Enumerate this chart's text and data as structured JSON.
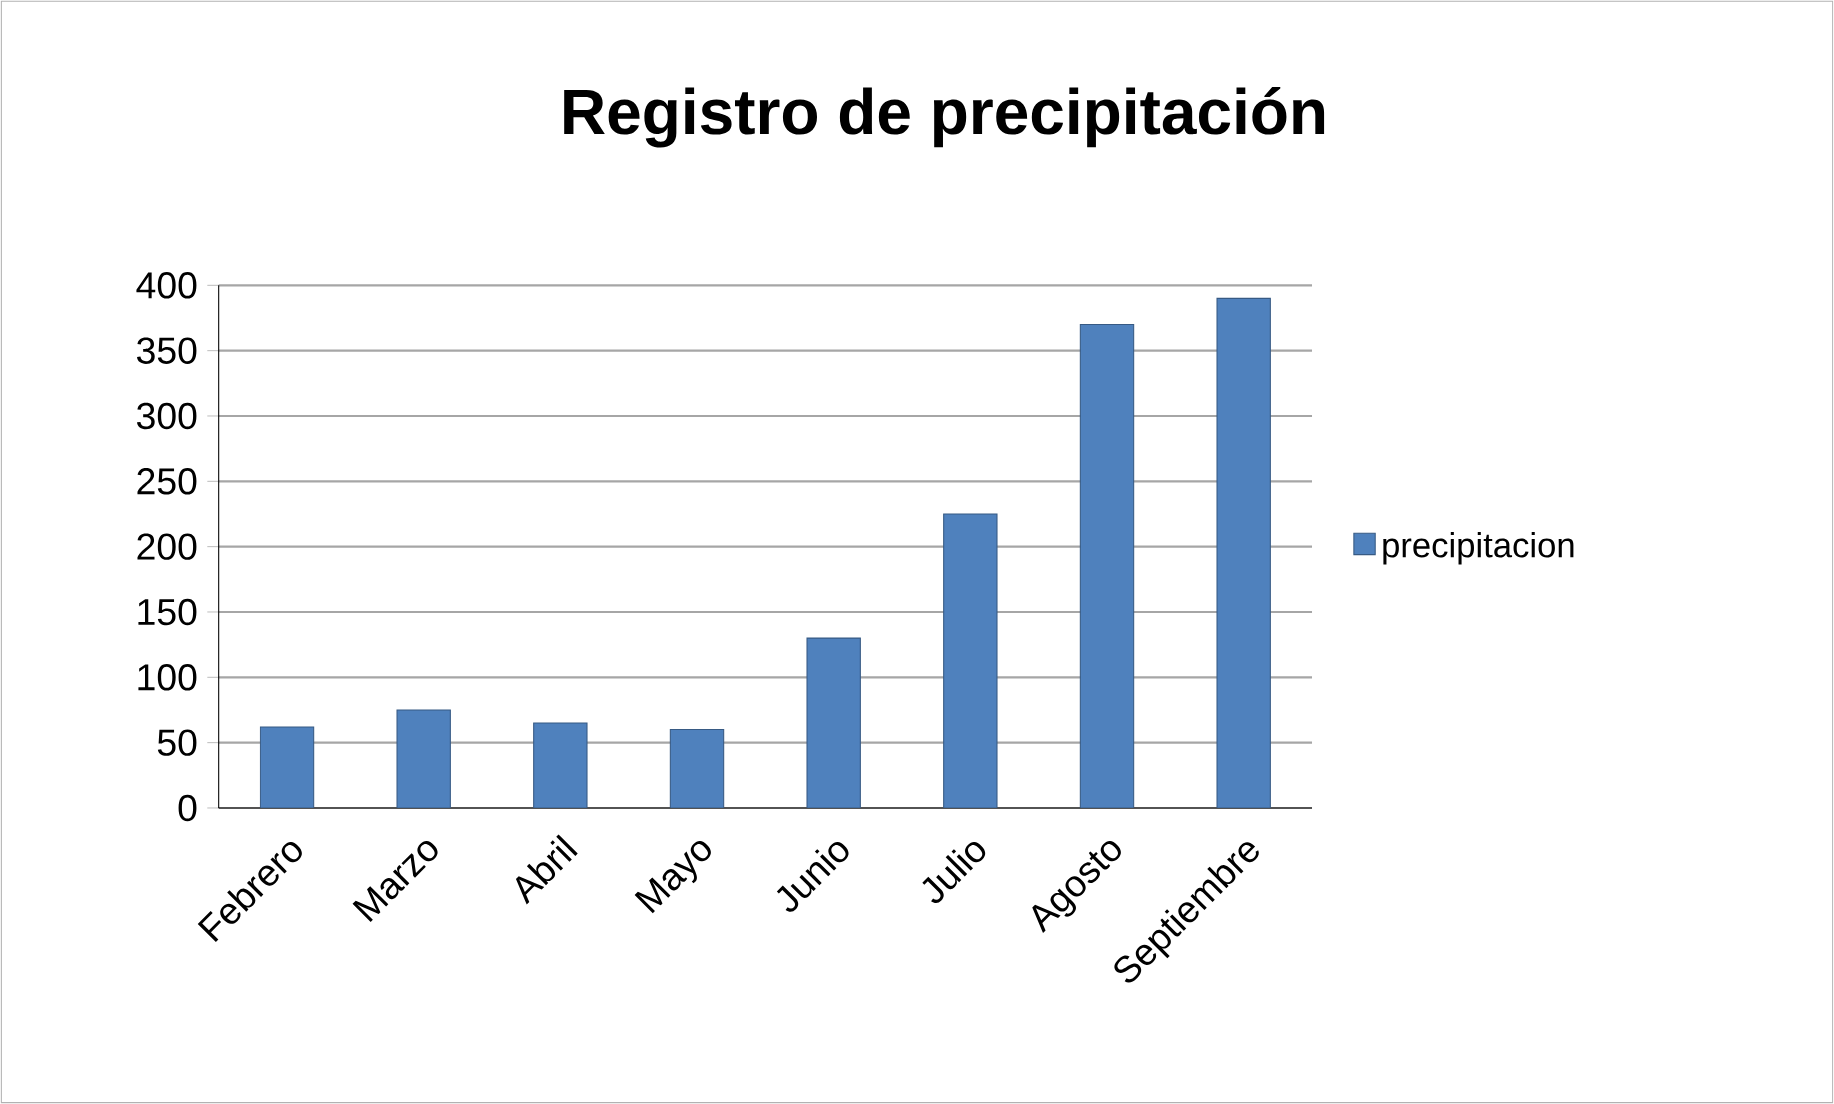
{
  "chart_data": {
    "type": "bar",
    "title": "Registro de precipitación",
    "categories": [
      "Febrero",
      "Marzo",
      "Abril",
      "Mayo",
      "Junio",
      "Julio",
      "Agosto",
      "Septiembre"
    ],
    "series": [
      {
        "name": "precipitacion",
        "color": "#4f81bd",
        "values": [
          62,
          75,
          65,
          60,
          130,
          225,
          370,
          390
        ]
      }
    ],
    "ylim": [
      0,
      400
    ],
    "yticks": [
      0,
      50,
      100,
      150,
      200,
      250,
      300,
      350,
      400
    ],
    "grid": "y",
    "legend": "right"
  }
}
